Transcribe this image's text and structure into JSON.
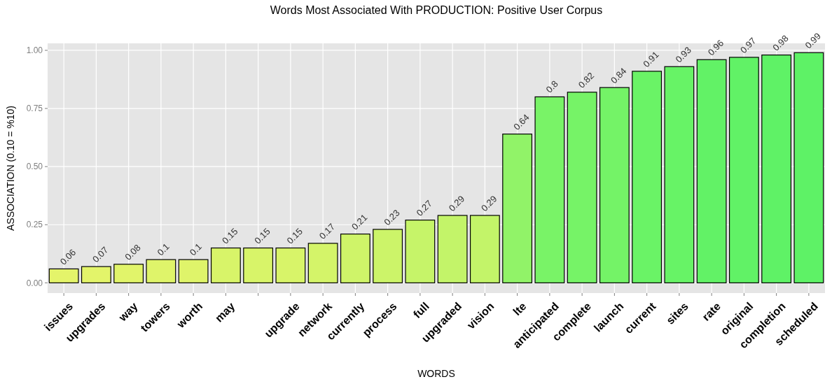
{
  "chart_data": {
    "type": "bar",
    "title": "Words Most Associated With PRODUCTION: Positive User Corpus",
    "xlabel": "WORDS",
    "ylabel": "ASSOCIATION (0.10 = %10)",
    "categories": [
      "issues",
      "upgrades",
      "way",
      "towers",
      "worth",
      "may",
      null,
      "upgrade",
      "network",
      "currently",
      "process",
      "full",
      "upgraded",
      "vision",
      "lte",
      "anticipated",
      "complete",
      "launch",
      "current",
      "sites",
      "rate",
      "original",
      "completion",
      "scheduled"
    ],
    "values": [
      0.06,
      0.07,
      0.08,
      0.1,
      0.1,
      0.15,
      0.15,
      0.15,
      0.17,
      0.21,
      0.23,
      0.27,
      0.29,
      0.29,
      0.64,
      0.8,
      0.82,
      0.84,
      0.91,
      0.93,
      0.96,
      0.97,
      0.98,
      0.99
    ],
    "colors": [
      "#e4f46a",
      "#e3f46a",
      "#e1f46a",
      "#dff46a",
      "#dff46a",
      "#d8f469",
      "#d8f469",
      "#d8f469",
      "#d4f469",
      "#cff469",
      "#ccf469",
      "#c6f469",
      "#c3f469",
      "#c3f469",
      "#91f368",
      "#79f367",
      "#76f367",
      "#74f367",
      "#6af366",
      "#67f366",
      "#62f266",
      "#61f266",
      "#5ff266",
      "#5ef266"
    ],
    "ylim": [
      -0.044,
      1.03
    ],
    "yticks": [
      {
        "value": 0,
        "label": "0.00"
      },
      {
        "value": 0.25,
        "label": "0.25"
      },
      {
        "value": 0.5,
        "label": "0.50"
      },
      {
        "value": 0.75,
        "label": "0.75"
      },
      {
        "value": 1,
        "label": "1.00"
      }
    ],
    "grid": true,
    "data_labels": true
  }
}
